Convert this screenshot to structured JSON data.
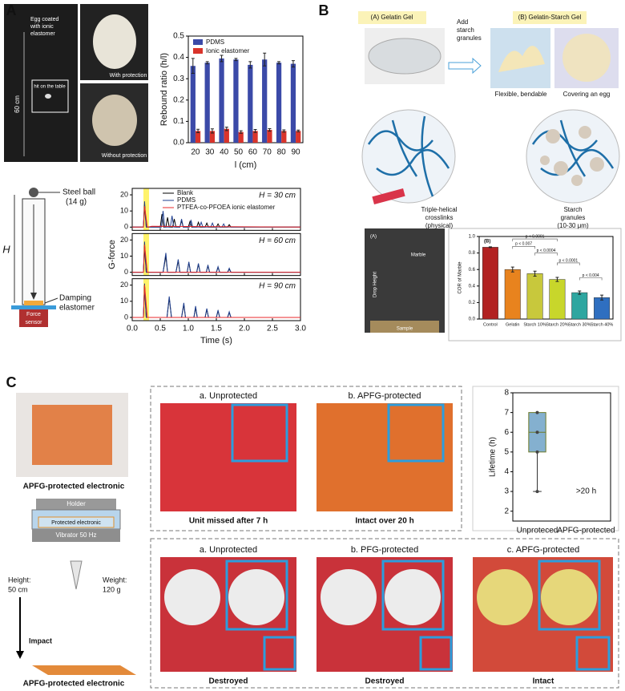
{
  "figure": {
    "a": {
      "label": "A",
      "caption": [
        "Egg coated",
        "with ionic",
        "elastomer"
      ],
      "height": "60 cm",
      "hit": "hit on the table",
      "with": "With protection",
      "without": "Without protection",
      "ball": [
        "Steel ball",
        "(14 g)"
      ],
      "h": "H",
      "damping": [
        "Damping",
        "elastomer"
      ],
      "sensor": [
        "Force",
        "sensor"
      ]
    },
    "b": {
      "label": "B",
      "gel_a": "(A) Gelatin Gel",
      "add": [
        "Add",
        "starch",
        "granules"
      ],
      "gel_b": "(B) Gelatin-Starch Gel",
      "flexible": "Flexible, bendable",
      "covering": "Covering an egg",
      "helix": [
        "Triple-helical",
        "crosslinks",
        "(physical)"
      ],
      "granules": [
        "Starch",
        "granules",
        "(10-30 μm)"
      ],
      "photo_tag": "(A)",
      "drop": "Drop Height",
      "marble": "Marble",
      "sample": "Sample"
    },
    "c": {
      "label": "C",
      "product": "APFG-protected electronic",
      "holder": "Holder",
      "protected": "Protected electronic",
      "vibrator": "Vibrator 50 Hz",
      "height": [
        "Height:",
        "50 cm"
      ],
      "weight": [
        "Weight:",
        "120 g"
      ],
      "impact": "Impact",
      "product2": "APFG-protected electronic",
      "top": [
        "a. Unprotected",
        "b. APFG-protected"
      ],
      "top_result": [
        "Unit missed after 7 h",
        "Intact over 20 h"
      ],
      "bottom": [
        "a. Unprotected",
        "b. PFG-protected",
        "c. APFG-protected"
      ],
      "bottom_result": [
        "Destroyed",
        "Destroyed",
        "Intact"
      ]
    }
  },
  "chart_data": [
    {
      "type": "bar",
      "y_label": "Rebound ratio (h/l)",
      "x_label": "l (cm)",
      "legend": "upper left",
      "categories": [
        "20",
        "30",
        "40",
        "50",
        "60",
        "70",
        "80",
        "90"
      ],
      "series": [
        {
          "name": "PDMS",
          "color": "#3b4aa8",
          "values": [
            0.36,
            0.375,
            0.395,
            0.39,
            0.365,
            0.39,
            0.375,
            0.37
          ],
          "errors": [
            0.035,
            0.005,
            0.015,
            0.005,
            0.015,
            0.03,
            0.005,
            0.015
          ]
        },
        {
          "name": "Ionic elastomer",
          "color": "#d9342b",
          "values": [
            0.055,
            0.055,
            0.065,
            0.05,
            0.055,
            0.06,
            0.055,
            0.055
          ],
          "errors": [
            0.008,
            0.01,
            0.008,
            0.006,
            0.007,
            0.006,
            0.005,
            0.004
          ]
        }
      ],
      "ylim": [
        0,
        0.5
      ],
      "yticks": [
        {
          "value": 0,
          "label": "0.0"
        },
        {
          "value": 0.1,
          "label": "0.1"
        },
        {
          "value": 0.2,
          "label": "0.2"
        },
        {
          "value": 0.3,
          "label": "0.3"
        },
        {
          "value": 0.4,
          "label": "0.4"
        },
        {
          "value": 0.5,
          "label": "0.5"
        }
      ]
    },
    {
      "type": "line",
      "y_label": "G-force",
      "x_label": "Time (s)",
      "legend": "upper right",
      "subplot_labels": [
        "H = 30 cm",
        "H = 60 cm",
        "H = 90 cm"
      ],
      "highlight": [
        0.2,
        0.3
      ],
      "highlight_color": "#fff36b",
      "xlim": [
        0,
        3
      ],
      "xticks": [
        {
          "value": 0,
          "label": "0.0"
        },
        {
          "value": 0.5,
          "label": "0.5"
        },
        {
          "value": 1,
          "label": "1.0"
        },
        {
          "value": 1.5,
          "label": "1.5"
        },
        {
          "value": 2,
          "label": "2.0"
        },
        {
          "value": 2.5,
          "label": "2.5"
        },
        {
          "value": 3,
          "label": "3.0"
        }
      ],
      "ylim": [
        -2,
        24
      ],
      "yticks": [
        0,
        10,
        20
      ],
      "series": [
        {
          "name": "Blank",
          "color": "#000000",
          "x": [
            [
              0,
              0.2,
              0.22,
              0.25,
              0.5,
              0.53,
              0.56,
              0.6,
              0.63,
              0.66,
              0.72,
              0.75,
              0.78,
              0.85,
              0.88,
              0.91,
              1.0,
              1.03,
              1.06,
              1.15,
              1.18,
              1.21,
              1.3,
              1.33,
              1.36,
              1.5,
              1.53,
              1.56,
              1.7,
              1.73,
              1.76,
              3.0
            ],
            [
              0,
              0.2,
              0.22,
              0.25,
              0.55,
              0.6,
              0.63,
              0.78,
              0.82,
              0.85,
              0.98,
              1.01,
              1.04,
              1.15,
              1.18,
              1.21,
              1.32,
              1.35,
              1.38,
              1.5,
              1.53,
              1.56,
              1.7,
              1.73,
              1.76,
              3.0
            ],
            [
              0,
              0.2,
              0.22,
              0.25,
              0.62,
              0.66,
              0.7,
              0.88,
              0.92,
              0.95,
              1.1,
              1.13,
              1.16,
              1.3,
              1.33,
              1.36,
              1.5,
              1.53,
              1.56,
              1.7,
              1.73,
              1.76,
              3.0
            ]
          ],
          "values": [
            [
              0,
              0,
              14,
              0,
              0,
              8,
              0,
              0,
              6,
              0,
              0,
              5,
              0,
              0,
              4,
              0,
              0,
              3.5,
              0,
              0,
              3,
              0,
              0,
              2.5,
              0,
              0,
              2,
              0,
              0,
              1.5,
              0,
              0
            ],
            [
              0,
              0,
              16,
              0,
              0,
              10,
              0,
              0,
              7,
              0,
              0,
              6,
              0,
              0,
              5,
              0,
              0,
              4,
              0,
              0,
              3,
              0,
              0,
              2,
              0,
              0
            ],
            [
              0,
              0,
              20,
              0,
              0,
              12,
              0,
              0,
              8,
              0,
              0,
              6,
              0,
              0,
              5,
              0,
              0,
              4,
              0,
              0,
              3,
              0,
              0
            ]
          ]
        },
        {
          "name": "PDMS",
          "color": "#1f3f8f",
          "x": [
            [
              0,
              0.2,
              0.22,
              0.25,
              0.52,
              0.55,
              0.58,
              0.68,
              0.71,
              0.74,
              0.85,
              0.88,
              0.91,
              1.02,
              1.05,
              1.08,
              1.2,
              1.23,
              1.26,
              1.4,
              1.43,
              1.46,
              1.6,
              1.63,
              1.66,
              3.0
            ],
            [
              0,
              0.2,
              0.22,
              0.25,
              0.55,
              0.6,
              0.63,
              0.78,
              0.82,
              0.85,
              0.98,
              1.01,
              1.04,
              1.15,
              1.18,
              1.21,
              1.32,
              1.35,
              1.38,
              1.5,
              1.53,
              1.56,
              1.7,
              1.73,
              1.76,
              3.0
            ],
            [
              0,
              0.2,
              0.22,
              0.25,
              0.62,
              0.66,
              0.7,
              0.88,
              0.92,
              0.95,
              1.1,
              1.13,
              1.16,
              1.3,
              1.33,
              1.36,
              1.5,
              1.53,
              1.56,
              1.7,
              1.73,
              1.76,
              3.0
            ]
          ],
          "values": [
            [
              0,
              0,
              16,
              0,
              0,
              10,
              0,
              0,
              7,
              0,
              0,
              5,
              0,
              0,
              4,
              0,
              0,
              3,
              0,
              0,
              2.5,
              0,
              0,
              2,
              0,
              0
            ],
            [
              0,
              0,
              19,
              0,
              0,
              12,
              0,
              0,
              8,
              0,
              0,
              6.5,
              0,
              0,
              5.5,
              0,
              0,
              4.5,
              0,
              0,
              3.5,
              0,
              0,
              2.5,
              0,
              0
            ],
            [
              0,
              0,
              21,
              0,
              0,
              13,
              0,
              0,
              9,
              0,
              0,
              7,
              0,
              0,
              5.5,
              0,
              0,
              4.5,
              0,
              0,
              3.5,
              0,
              0
            ]
          ]
        },
        {
          "name": "PTFEA-co-PFOEA ionic elastomer",
          "color": "#e8282b",
          "x": [
            [
              0,
              0.2,
              0.22,
              0.27,
              0.35,
              3.0
            ],
            [
              0,
              0.2,
              0.22,
              0.27,
              3.0
            ],
            [
              0,
              0.2,
              0.22,
              0.27,
              3.0
            ]
          ],
          "values": [
            [
              0,
              0,
              13,
              0,
              0.5,
              0
            ],
            [
              0,
              0,
              17,
              0,
              0
            ],
            [
              0,
              0,
              20,
              0,
              0
            ]
          ]
        }
      ]
    },
    {
      "type": "bar",
      "title": "(B)",
      "y_label": "COR of Marble",
      "categories": [
        "Control",
        "Gelatin",
        "Starch 10%",
        "Starch 20%",
        "Starch 30%",
        "Starch 40%"
      ],
      "values": [
        0.87,
        0.6,
        0.55,
        0.48,
        0.32,
        0.26
      ],
      "errors": [
        0.005,
        0.03,
        0.03,
        0.025,
        0.02,
        0.03
      ],
      "colors": [
        "#b22222",
        "#e8831e",
        "#c8c83c",
        "#c8d62b",
        "#2ea6a0",
        "#2f6fc0"
      ],
      "annotations": [
        "p < 0.0001",
        "p < 0.007",
        "p < 0.0004",
        "p < 0.0001",
        "p < 0.004"
      ],
      "ylim": [
        0,
        1
      ],
      "yticks": [
        {
          "value": 0,
          "label": "0.0"
        },
        {
          "value": 0.2,
          "label": "0.2"
        },
        {
          "value": 0.4,
          "label": "0.4"
        },
        {
          "value": 0.6,
          "label": "0.6"
        },
        {
          "value": 0.8,
          "label": "0.8"
        },
        {
          "value": 1,
          "label": "1.0"
        }
      ]
    },
    {
      "type": "box",
      "y_label": "Lifetime (h)",
      "categories": [
        "Unproteced",
        "APFG-protected"
      ],
      "color": "#84b0cf",
      "boxes": [
        {
          "min": 3,
          "q1": 5,
          "median": 6,
          "q3": 7,
          "max": 7,
          "points": [
            3,
            5,
            6,
            7
          ]
        }
      ],
      "annotation": ">20 h",
      "ylim": [
        1.5,
        8
      ],
      "yticks": [
        2,
        3,
        4,
        5,
        6,
        7,
        8
      ]
    }
  ]
}
